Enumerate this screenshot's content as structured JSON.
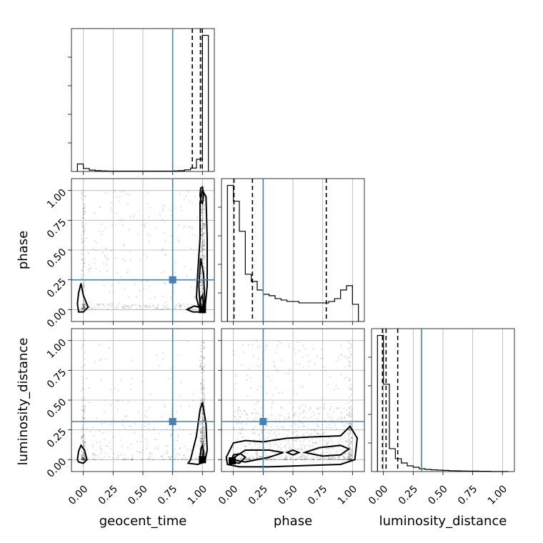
{
  "chart_data": {
    "type": "scatter",
    "subtype": "corner_plot",
    "parameters": [
      "geocent_time",
      "phase",
      "luminosity_distance"
    ],
    "axis_range": [
      -0.1,
      1.1
    ],
    "ticks": [
      0.0,
      0.25,
      0.5,
      0.75,
      1.0
    ],
    "tick_labels": [
      "0.00",
      "0.25",
      "0.50",
      "0.75",
      "1.00"
    ],
    "grid": true,
    "colors": {
      "truth": "#4682b4",
      "hist": "#000000",
      "points": "#000000",
      "grid": "#b0b0b0"
    },
    "truths": {
      "geocent_time": 0.75,
      "phase": 0.25,
      "luminosity_distance": 0.32
    },
    "histograms": {
      "geocent_time": {
        "bin_edges": [
          -0.05,
          0.0,
          0.05,
          0.1,
          0.15,
          0.2,
          0.25,
          0.3,
          0.35,
          0.4,
          0.45,
          0.5,
          0.55,
          0.6,
          0.65,
          0.7,
          0.75,
          0.8,
          0.85,
          0.9,
          0.95,
          1.0,
          1.05
        ],
        "counts": [
          0.055,
          0.022,
          0.01,
          0.006,
          0.004,
          0.003,
          0.003,
          0.003,
          0.003,
          0.003,
          0.003,
          0.003,
          0.003,
          0.003,
          0.003,
          0.003,
          0.004,
          0.006,
          0.012,
          0.025,
          0.09,
          1.0
        ],
        "quantiles": [
          0.915,
          0.983,
          0.999
        ]
      },
      "phase": {
        "bin_edges": [
          -0.05,
          0.0,
          0.05,
          0.1,
          0.15,
          0.2,
          0.25,
          0.3,
          0.35,
          0.4,
          0.45,
          0.5,
          0.55,
          0.6,
          0.65,
          0.7,
          0.75,
          0.8,
          0.85,
          0.9,
          0.95,
          1.0,
          1.05
        ],
        "counts": [
          0.95,
          0.84,
          0.63,
          0.33,
          0.28,
          0.22,
          0.19,
          0.18,
          0.16,
          0.15,
          0.14,
          0.14,
          0.13,
          0.13,
          0.13,
          0.13,
          0.13,
          0.14,
          0.16,
          0.22,
          0.25,
          0.12
        ],
        "quantiles": [
          0.005,
          0.16,
          0.78
        ]
      },
      "luminosity_distance": {
        "bin_edges": [
          -0.05,
          0.0,
          0.05,
          0.1,
          0.15,
          0.2,
          0.25,
          0.3,
          0.35,
          0.4,
          0.45,
          0.5,
          0.55,
          0.6,
          0.65,
          0.7,
          0.75,
          0.8,
          0.85,
          0.9,
          0.95,
          1.0,
          1.05
        ],
        "counts": [
          0.95,
          0.61,
          0.16,
          0.09,
          0.06,
          0.04,
          0.03,
          0.02,
          0.015,
          0.012,
          0.01,
          0.008,
          0.006,
          0.005,
          0.004,
          0.003,
          0.003,
          0.002,
          0.002,
          0.0,
          0.0,
          0.0
        ],
        "quantiles": [
          -0.008,
          0.022,
          0.12
        ]
      }
    },
    "contours": {
      "phase_vs_geocent_time": [
        [
          [
            0.97,
            0.02
          ],
          [
            0.95,
            0.1
          ],
          [
            0.96,
            0.3
          ],
          [
            0.98,
            0.6
          ],
          [
            0.98,
            0.9
          ],
          [
            1.0,
            1.0
          ],
          [
            1.03,
            0.95
          ],
          [
            1.04,
            0.6
          ],
          [
            1.04,
            0.2
          ],
          [
            1.02,
            -0.01
          ],
          [
            0.98,
            -0.02
          ],
          [
            0.92,
            -0.02
          ],
          [
            0.87,
            0.0
          ],
          [
            0.93,
            0.03
          ]
        ],
        [
          [
            0.98,
            0.03
          ],
          [
            0.97,
            0.2
          ],
          [
            0.985,
            0.43
          ],
          [
            1.01,
            0.3
          ],
          [
            1.02,
            0.05
          ],
          [
            1.0,
            -0.01
          ]
        ],
        [
          [
            0.98,
            0.0
          ],
          [
            0.985,
            0.09
          ],
          [
            1.0,
            0.12
          ],
          [
            1.01,
            0.04
          ],
          [
            1.0,
            -0.01
          ]
        ],
        [
          [
            0.98,
            0.96
          ],
          [
            0.985,
            1.02
          ],
          [
            1.0,
            1.03
          ],
          [
            1.01,
            0.97
          ],
          [
            1.0,
            0.89
          ],
          [
            0.99,
            0.9
          ]
        ],
        [
          [
            -0.05,
            0.05
          ],
          [
            -0.04,
            0.14
          ],
          [
            -0.02,
            0.22
          ],
          [
            0.0,
            0.12
          ],
          [
            0.04,
            0.02
          ],
          [
            0.0,
            -0.02
          ],
          [
            -0.04,
            -0.02
          ]
        ]
      ],
      "luminosity_distance_vs_geocent_time": [
        [
          [
            0.9,
            0.0
          ],
          [
            0.95,
            0.2
          ],
          [
            0.98,
            0.42
          ],
          [
            1.0,
            0.48
          ],
          [
            1.03,
            0.3
          ],
          [
            1.04,
            0.08
          ],
          [
            1.02,
            -0.02
          ],
          [
            0.96,
            -0.04
          ],
          [
            0.88,
            -0.03
          ]
        ],
        [
          [
            0.98,
            0.02
          ],
          [
            0.99,
            0.1
          ],
          [
            1.0,
            0.12
          ],
          [
            1.01,
            0.07
          ],
          [
            1.0,
            0.0
          ]
        ],
        [
          [
            -0.05,
            0.0
          ],
          [
            -0.04,
            0.07
          ],
          [
            -0.02,
            0.12
          ],
          [
            0.01,
            0.08
          ],
          [
            0.03,
            0.0
          ],
          [
            0.0,
            -0.03
          ],
          [
            -0.04,
            -0.02
          ]
        ]
      ],
      "luminosity_distance_vs_phase": [
        [
          [
            -0.06,
            0.02
          ],
          [
            0.0,
            0.14
          ],
          [
            0.1,
            0.16
          ],
          [
            0.25,
            0.15
          ],
          [
            0.45,
            0.18
          ],
          [
            0.65,
            0.19
          ],
          [
            0.9,
            0.2
          ],
          [
            0.98,
            0.28
          ],
          [
            1.04,
            0.18
          ],
          [
            1.02,
            0.0
          ],
          [
            0.9,
            -0.04
          ],
          [
            0.6,
            -0.05
          ],
          [
            0.3,
            -0.06
          ],
          [
            0.05,
            -0.06
          ],
          [
            -0.05,
            -0.04
          ]
        ],
        [
          [
            -0.02,
            0.0
          ],
          [
            0.1,
            0.08
          ],
          [
            0.3,
            0.08
          ],
          [
            0.42,
            0.06
          ],
          [
            0.3,
            0.02
          ],
          [
            0.1,
            -0.02
          ]
        ],
        [
          [
            0.6,
            0.06
          ],
          [
            0.72,
            0.1
          ],
          [
            0.9,
            0.12
          ],
          [
            0.97,
            0.09
          ],
          [
            0.9,
            0.04
          ],
          [
            0.75,
            0.03
          ]
        ],
        [
          [
            0.45,
            0.06
          ],
          [
            0.5,
            0.08
          ],
          [
            0.55,
            0.06
          ],
          [
            0.5,
            0.04
          ]
        ],
        [
          [
            -0.02,
            -0.02
          ],
          [
            0.0,
            0.04
          ],
          [
            0.06,
            0.05
          ],
          [
            0.1,
            0.02
          ],
          [
            0.05,
            -0.03
          ]
        ]
      ]
    },
    "mode_peaks": {
      "phase_vs_geocent_time": [
        1.0,
        0.0
      ],
      "luminosity_distance_vs_geocent_time": [
        1.0,
        0.0
      ],
      "luminosity_distance_vs_phase": [
        -0.01,
        -0.01
      ]
    }
  }
}
